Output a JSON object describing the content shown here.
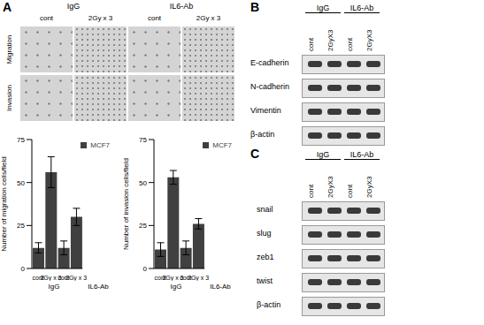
{
  "panel_labels": [
    "A",
    "B",
    "C"
  ],
  "panel_a": {
    "column_groups": [
      "IgG",
      "IL6-Ab"
    ],
    "columns": [
      "cont",
      "2Gy x 3",
      "cont",
      "2Gy x 3"
    ],
    "rows": [
      "Migration",
      "Invasion"
    ]
  },
  "chart_data": [
    {
      "type": "bar",
      "y_label": "Number of migration cells/field",
      "categories": [
        "cont",
        "2Gy x 3",
        "cont",
        "2Gy x 3"
      ],
      "category_groups": [
        "IgG",
        "IL6-Ab"
      ],
      "series": [
        {
          "name": "MCF7",
          "color": "#404040",
          "values": [
            12,
            56,
            12,
            30
          ],
          "errors": [
            3,
            9,
            4,
            5
          ]
        }
      ],
      "ylim": [
        0,
        75
      ],
      "yticks": [
        0,
        25,
        50,
        75
      ],
      "legend": "upper right"
    },
    {
      "type": "bar",
      "y_label": "Number of invasion cells/field",
      "categories": [
        "cont",
        "2Gy x 3",
        "cont",
        "2Gy x 3"
      ],
      "category_groups": [
        "IgG",
        "IL6-Ab"
      ],
      "series": [
        {
          "name": "MCF7",
          "color": "#404040",
          "values": [
            11,
            53,
            12,
            26
          ],
          "errors": [
            4,
            4,
            4,
            3
          ]
        }
      ],
      "ylim": [
        0,
        75
      ],
      "yticks": [
        0,
        25,
        50,
        75
      ],
      "legend": "upper right"
    }
  ],
  "panel_b": {
    "column_groups": [
      "IgG",
      "IL6-Ab"
    ],
    "columns": [
      "cont",
      "2GyX3",
      "cont",
      "2GyX3"
    ],
    "rows": [
      "E-cadherin",
      "N-cadherin",
      "Vimentin",
      "β-actin"
    ]
  },
  "panel_c": {
    "column_groups": [
      "IgG",
      "IL6-Ab"
    ],
    "columns": [
      "cont",
      "2GyX3",
      "cont",
      "2GyX3"
    ],
    "rows": [
      "snail",
      "slug",
      "zeb1",
      "twist",
      "β-actin"
    ]
  }
}
